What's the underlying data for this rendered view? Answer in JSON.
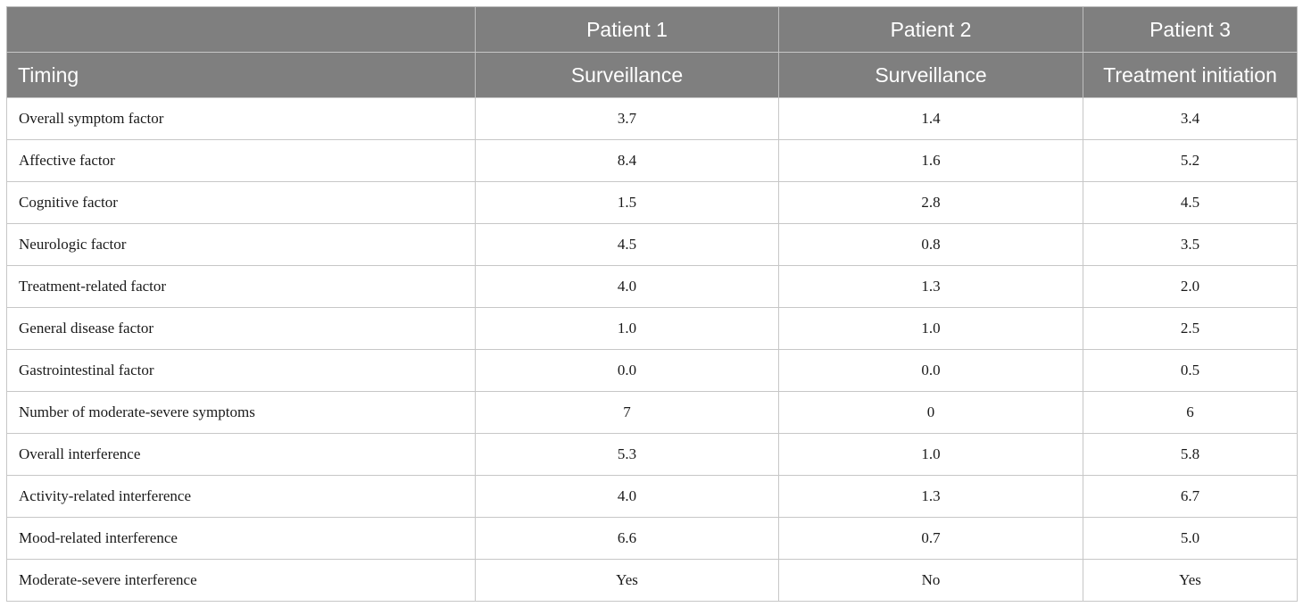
{
  "header": {
    "patients": [
      "",
      "Patient 1",
      "Patient 2",
      "Patient 3"
    ],
    "timing_label": "Timing",
    "timing": [
      "Surveillance",
      "Surveillance",
      "Treatment initiation"
    ]
  },
  "rows": [
    {
      "label": "Overall symptom factor",
      "values": [
        "3.7",
        "1.4",
        "3.4"
      ]
    },
    {
      "label": "Affective factor",
      "values": [
        "8.4",
        "1.6",
        "5.2"
      ]
    },
    {
      "label": "Cognitive factor",
      "values": [
        "1.5",
        "2.8",
        "4.5"
      ]
    },
    {
      "label": "Neurologic factor",
      "values": [
        "4.5",
        "0.8",
        "3.5"
      ]
    },
    {
      "label": "Treatment-related factor",
      "values": [
        "4.0",
        "1.3",
        "2.0"
      ]
    },
    {
      "label": "General disease factor",
      "values": [
        "1.0",
        "1.0",
        "2.5"
      ]
    },
    {
      "label": "Gastrointestinal factor",
      "values": [
        "0.0",
        "0.0",
        "0.5"
      ]
    },
    {
      "label": "Number of moderate-severe symptoms",
      "values": [
        "7",
        "0",
        "6"
      ]
    },
    {
      "label": "Overall interference",
      "values": [
        "5.3",
        "1.0",
        "5.8"
      ]
    },
    {
      "label": "Activity-related interference",
      "values": [
        "4.0",
        "1.3",
        "6.7"
      ]
    },
    {
      "label": "Mood-related interference",
      "values": [
        "6.6",
        "0.7",
        "5.0"
      ]
    },
    {
      "label": "Moderate-severe interference",
      "values": [
        "Yes",
        "No",
        "Yes"
      ]
    }
  ],
  "colors": {
    "header_bg": "#7f7f7f",
    "header_text": "#ffffff",
    "grid": "#c7c7c7"
  }
}
